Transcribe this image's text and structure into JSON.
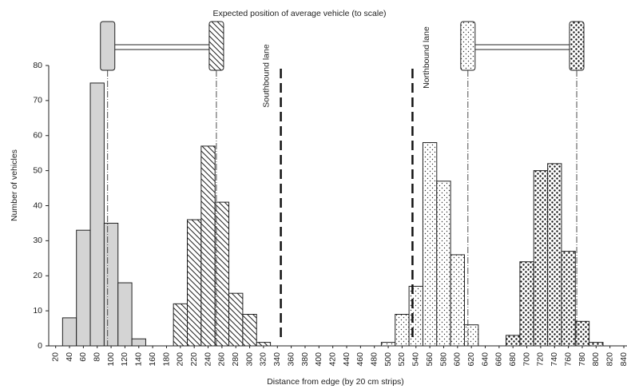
{
  "chart_data": {
    "type": "bar",
    "title": "Expected position of average vehicle (to scale)",
    "x_label": "Distance from edge (by 20 cm strips)",
    "y_label": "Number of vehicles",
    "categories": [
      "20",
      "40",
      "60",
      "80",
      "100",
      "120",
      "140",
      "160",
      "180",
      "200",
      "220",
      "240",
      "260",
      "280",
      "300",
      "320",
      "340",
      "360",
      "380",
      "400",
      "420",
      "440",
      "460",
      "480",
      "500",
      "520",
      "540",
      "560",
      "580",
      "600",
      "620",
      "640",
      "660",
      "680",
      "700",
      "720",
      "740",
      "760",
      "780",
      "800",
      "820",
      "840"
    ],
    "series": [
      {
        "color": "#d4d4d4",
        "pattern": "solid",
        "values": [
          null,
          8,
          33,
          75,
          35,
          18,
          2,
          null,
          null,
          null,
          null,
          null,
          null,
          null,
          null,
          null,
          null,
          null,
          null,
          null,
          null,
          null,
          null,
          null,
          null,
          null,
          null,
          null,
          null,
          null,
          null,
          null,
          null,
          null,
          null,
          null,
          null,
          null,
          null,
          null,
          null,
          null
        ]
      },
      {
        "color": "#ffffff",
        "pattern": "diagonal",
        "values": [
          null,
          null,
          null,
          null,
          null,
          null,
          null,
          null,
          null,
          12,
          36,
          57,
          41,
          15,
          9,
          1,
          null,
          null,
          null,
          null,
          null,
          null,
          null,
          null,
          null,
          null,
          null,
          null,
          null,
          null,
          null,
          null,
          null,
          null,
          null,
          null,
          null,
          null,
          null,
          null,
          null,
          null
        ]
      },
      {
        "color": "#ffffff",
        "pattern": "dots",
        "values": [
          null,
          null,
          null,
          null,
          null,
          null,
          null,
          null,
          null,
          null,
          null,
          null,
          null,
          null,
          null,
          null,
          null,
          null,
          null,
          null,
          null,
          null,
          null,
          null,
          1,
          9,
          17,
          58,
          47,
          26,
          6,
          null,
          null,
          null,
          null,
          null,
          null,
          null,
          null,
          null,
          null,
          null
        ]
      },
      {
        "color": "#ffffff",
        "pattern": "dense-dots",
        "values": [
          null,
          null,
          null,
          null,
          null,
          null,
          null,
          null,
          null,
          null,
          null,
          null,
          null,
          null,
          null,
          null,
          null,
          null,
          null,
          null,
          null,
          null,
          null,
          null,
          null,
          null,
          null,
          null,
          null,
          null,
          null,
          null,
          null,
          3,
          24,
          50,
          52,
          27,
          7,
          1,
          null,
          null
        ]
      }
    ],
    "ylim": [
      0,
      80
    ],
    "yticks": [
      0,
      10,
      20,
      30,
      40,
      50,
      60,
      70,
      80
    ],
    "lanes": [
      {
        "x": 345,
        "label": "Southbound lane"
      },
      {
        "x": 535,
        "label": "Northbound lane"
      }
    ],
    "vehicles": [
      {
        "wheels": [
          {
            "x": 95,
            "pattern": "solid"
          },
          {
            "x": 252,
            "pattern": "diagonal"
          }
        ]
      },
      {
        "wheels": [
          {
            "x": 615,
            "pattern": "dots"
          },
          {
            "x": 772,
            "pattern": "dense-dots"
          }
        ]
      }
    ]
  }
}
